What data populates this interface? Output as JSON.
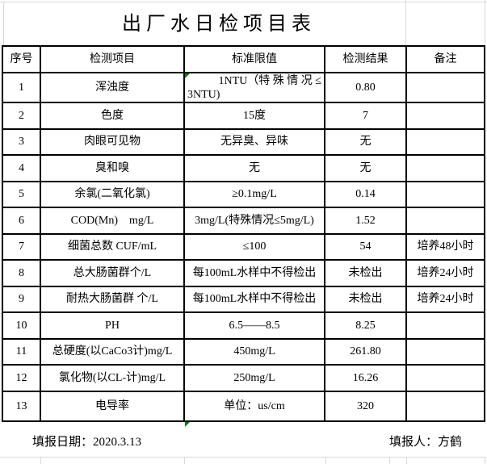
{
  "page": {
    "background": "#ffffff",
    "grid_color": "#d9d9d9",
    "border_color": "#000000",
    "marker_color": "#008000"
  },
  "title": "出厂水日检项目表",
  "table": {
    "headers": {
      "num": "序号",
      "item": "检测项目",
      "std": "标准限值",
      "result": "检测结果",
      "note": "备注"
    },
    "rows": [
      {
        "num": "1",
        "item": "浑浊度",
        "std": "1NTU（特殊情况≤3NTU)",
        "std_lines": [
          "1NTU（特 殊 情 况 ≤",
          "3NTU)"
        ],
        "result": "0.80",
        "note": "",
        "marker": true
      },
      {
        "num": "2",
        "item": "色度",
        "std": "15度",
        "result": "7",
        "note": ""
      },
      {
        "num": "3",
        "item": "肉眼可见物",
        "std": "无异臭、异味",
        "result": "无",
        "note": ""
      },
      {
        "num": "4",
        "item": "臭和嗅",
        "std": "无",
        "result": "无",
        "note": ""
      },
      {
        "num": "5",
        "item": "余氯(二氧化氯)",
        "std": "≥0.1mg/L",
        "result": "0.14",
        "note": ""
      },
      {
        "num": "6",
        "item": "COD(Mn)    mg/L",
        "std": "3mg/L(特殊情况≤5mg/L)",
        "result": "1.52",
        "note": ""
      },
      {
        "num": "7",
        "item": "细菌总数 CUF/mL",
        "std": "≤100",
        "result": "54",
        "note": "培养48小时"
      },
      {
        "num": "8",
        "item": "总大肠菌群个/L",
        "std": "每100mL水样中不得检出",
        "result": "未检出",
        "note": "培养24小时"
      },
      {
        "num": "9",
        "item": "耐热大肠菌群 个/L",
        "std": "每100mL水样中不得检出",
        "result": "未检出",
        "note": "培养24小时"
      },
      {
        "num": "10",
        "item": "PH",
        "std": "6.5——8.5",
        "result": "8.25",
        "note": ""
      },
      {
        "num": "11",
        "item": "总硬度(以CaCo3计)mg/L",
        "std": "450mg/L",
        "result": "261.80",
        "note": ""
      },
      {
        "num": "12",
        "item": "氯化物(以CL-计)mg/L",
        "std": "250mg/L",
        "result": "16.26",
        "note": ""
      },
      {
        "num": "13",
        "item": "电导率",
        "std": "单位：us/cm",
        "result": "320",
        "note": ""
      }
    ]
  },
  "footer": {
    "date_label": "填报日期：2020.3.13",
    "reporter_label": "填报人：方鹤",
    "marker": true
  }
}
